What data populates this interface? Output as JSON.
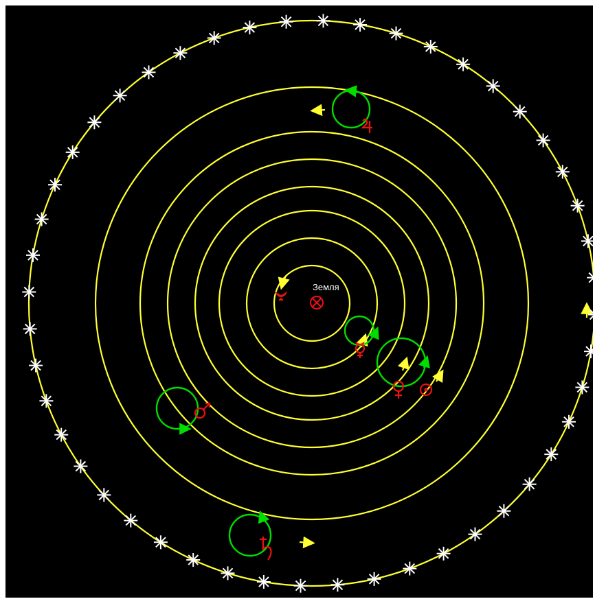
{
  "earth": {
    "label": "Земля",
    "symbol": "⊗"
  },
  "bodies": [
    {
      "id": "moon",
      "symbol": "☽",
      "name": "moon"
    },
    {
      "id": "mercury",
      "symbol": "☿",
      "name": "mercury"
    },
    {
      "id": "venus",
      "symbol": "♀",
      "name": "venus"
    },
    {
      "id": "sun",
      "symbol": "☉",
      "name": "sun"
    },
    {
      "id": "mars",
      "symbol": "♂",
      "name": "mars"
    },
    {
      "id": "jupiter",
      "symbol": "♃",
      "name": "jupiter"
    },
    {
      "id": "saturn",
      "symbol": "♄",
      "name": "saturn"
    }
  ],
  "colors": {
    "background": "#000000",
    "deferent": "#ffff33",
    "epicycle": "#00dd00",
    "planet": "#ee1111",
    "star": "#ffffff",
    "label": "#ffffff"
  },
  "fixed_stars_count": 48
}
